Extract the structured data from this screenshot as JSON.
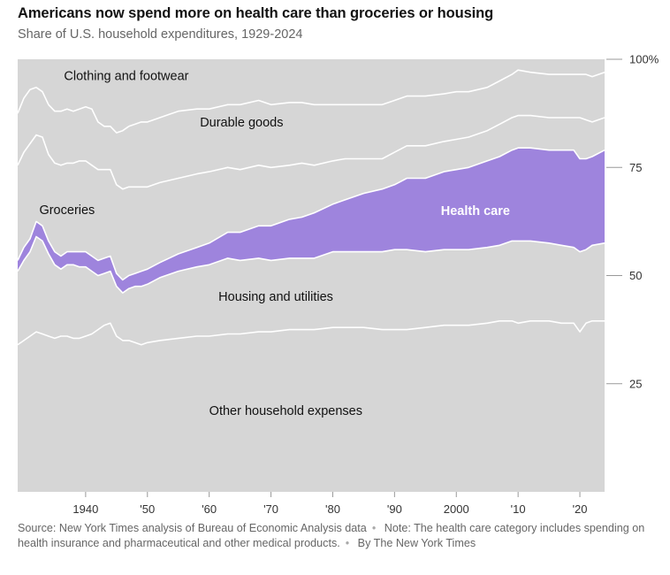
{
  "title": "Americans now spend more on health care than groceries or housing",
  "subtitle": "Share of U.S. household expenditures, 1929-2024",
  "footer": {
    "source": "Source: New York Times analysis of Bureau of Economic Analysis data",
    "note": "Note: The health care category includes spending on health insurance and pharmaceutical and other medical products.",
    "byline": "By The New York Times"
  },
  "colors": {
    "background_band": "#d6d6d6",
    "band_border": "#ffffff",
    "health_care": "#9e84dd",
    "text": "#121212",
    "muted": "#666666"
  },
  "chart_data": {
    "type": "area",
    "stacked": true,
    "title": "Americans now spend more on health care than groceries or housing",
    "subtitle": "Share of U.S. household expenditures, 1929-2024",
    "x": [
      1929,
      1930,
      1931,
      1932,
      1933,
      1934,
      1935,
      1936,
      1937,
      1938,
      1939,
      1940,
      1941,
      1942,
      1943,
      1944,
      1945,
      1946,
      1947,
      1948,
      1949,
      1950,
      1952,
      1955,
      1958,
      1960,
      1963,
      1965,
      1968,
      1970,
      1973,
      1975,
      1977,
      1980,
      1982,
      1985,
      1988,
      1990,
      1992,
      1995,
      1998,
      2000,
      2002,
      2005,
      2007,
      2009,
      2010,
      2012,
      2015,
      2017,
      2019,
      2020,
      2021,
      2022,
      2024
    ],
    "series": [
      {
        "name": "Other household expenses",
        "values": [
          34,
          35,
          36,
          37,
          36.5,
          36,
          35.5,
          36,
          36,
          35.5,
          35.5,
          36,
          36.5,
          37.5,
          38.5,
          39,
          36,
          35,
          35,
          34.5,
          34,
          34.5,
          35,
          35.5,
          36,
          36,
          36.5,
          36.5,
          37,
          37,
          37.5,
          37.5,
          37.5,
          38,
          38,
          38,
          37.5,
          37.5,
          37.5,
          38,
          38.5,
          38.5,
          38.5,
          39,
          39.5,
          39.5,
          39,
          39.5,
          39.5,
          39,
          39,
          37,
          39,
          39.5,
          39.5
        ]
      },
      {
        "name": "Housing and utilities",
        "values": [
          17,
          18.5,
          19.5,
          22,
          21.5,
          19,
          17,
          15.5,
          16.5,
          17,
          16.5,
          16,
          14.5,
          12.5,
          12,
          12,
          11.5,
          11,
          12,
          13,
          13.5,
          13.5,
          14.5,
          15.5,
          16,
          16.5,
          17.5,
          17,
          17,
          16.5,
          16.5,
          16.5,
          16.5,
          17.5,
          17.5,
          17.5,
          18,
          18.5,
          18.5,
          17.5,
          17.5,
          17.5,
          17.5,
          17.5,
          17.5,
          18.5,
          19,
          18.5,
          18,
          18,
          17.5,
          18.5,
          17,
          17.5,
          18
        ]
      },
      {
        "name": "Health care",
        "values": [
          2.5,
          3,
          3,
          3.5,
          3.5,
          3,
          3,
          3,
          3,
          3,
          3.5,
          3.5,
          3.5,
          3.5,
          3.5,
          3.5,
          3,
          3,
          3,
          3,
          3.5,
          3.5,
          3.5,
          4,
          4.5,
          5,
          6,
          6.5,
          7.5,
          8,
          9,
          9.5,
          10.5,
          11,
          12,
          13.5,
          14.5,
          15,
          16.5,
          17,
          18,
          18.5,
          19,
          20,
          20.5,
          21,
          21.5,
          21.5,
          21.5,
          22,
          22.5,
          21.5,
          21,
          20.5,
          21.5
        ]
      },
      {
        "name": "Groceries",
        "values": [
          22,
          22,
          22,
          20,
          20.5,
          20,
          20.5,
          21,
          20.5,
          20.5,
          21,
          21,
          21,
          21,
          20.5,
          20,
          20.5,
          21,
          20.5,
          20,
          19.5,
          19,
          18.5,
          17.5,
          17,
          16.5,
          15,
          14.5,
          14,
          13.5,
          12.5,
          12.5,
          11,
          10,
          9.5,
          8,
          7,
          7.5,
          7.5,
          7.5,
          7,
          7,
          7,
          7,
          7.5,
          7.5,
          7.5,
          7.5,
          7.5,
          7.5,
          7.5,
          9.5,
          9,
          8,
          7.5
        ]
      },
      {
        "name": "Durable goods",
        "values": [
          12,
          12.5,
          12.5,
          11,
          10.5,
          11.5,
          12,
          12.5,
          12.5,
          12,
          12,
          12.5,
          13,
          11,
          10,
          10,
          12,
          13.5,
          14,
          14.5,
          15,
          15,
          15,
          15.5,
          15,
          14.5,
          14.5,
          15,
          15,
          14.5,
          14.5,
          14,
          14,
          13,
          12.5,
          12.5,
          12.5,
          12,
          11.5,
          11.5,
          11,
          11,
          10.5,
          10,
          10,
          10,
          10.5,
          10,
          10,
          10,
          10,
          10,
          10.5,
          10.5,
          10.5
        ]
      },
      {
        "name": "Clothing and footwear",
        "values": [
          12.5,
          9,
          7,
          6.5,
          7.5,
          10.5,
          12,
          12,
          11.5,
          12,
          11.5,
          11,
          11.5,
          13.5,
          15.5,
          15.5,
          17,
          16.5,
          15.5,
          15,
          14.5,
          14.5,
          13.5,
          12,
          11.5,
          11.5,
          10.5,
          10.5,
          9.5,
          10.5,
          10,
          10,
          10.5,
          9.5,
          9.5,
          9,
          8.5,
          7.5,
          6.5,
          6.5,
          6,
          5.5,
          5,
          4.5,
          3.5,
          2.5,
          1.5,
          1.5,
          2,
          2.5,
          2.5,
          2.5,
          2.5,
          2.5,
          1.5
        ]
      }
    ],
    "xlim": [
      1929,
      2024
    ],
    "ylim": [
      0,
      100
    ],
    "x_ticks": [
      1940,
      1950,
      1960,
      1970,
      1980,
      1990,
      2000,
      2010,
      2020
    ],
    "x_tick_labels": [
      "1940",
      "'50",
      "'60",
      "'70",
      "'80",
      "'90",
      "2000",
      "'10",
      "'20"
    ],
    "y_ticks": [
      25,
      50,
      75,
      100
    ],
    "y_tick_labels": [
      "25",
      "50",
      "75",
      "100%"
    ],
    "highlight_series": "Health care",
    "series_labels": [
      {
        "series": "Clothing and footwear",
        "text": "Clothing and footwear",
        "x": 1936.5,
        "y": 96.2,
        "bold": false
      },
      {
        "series": "Durable goods",
        "text": "Durable goods",
        "x": 1958.5,
        "y": 85.5,
        "bold": false
      },
      {
        "series": "Groceries",
        "text": "Groceries",
        "x": 1932.5,
        "y": 65.2,
        "bold": false
      },
      {
        "series": "Health care",
        "text": "Health care",
        "x": 1997.5,
        "y": 65.0,
        "bold": true
      },
      {
        "series": "Housing and utilities",
        "text": "Housing and utilities",
        "x": 1961.5,
        "y": 45.2,
        "bold": false
      },
      {
        "series": "Other household expenses",
        "text": "Other household expenses",
        "x": 1960,
        "y": 18.8,
        "bold": false
      }
    ],
    "grid": false
  }
}
